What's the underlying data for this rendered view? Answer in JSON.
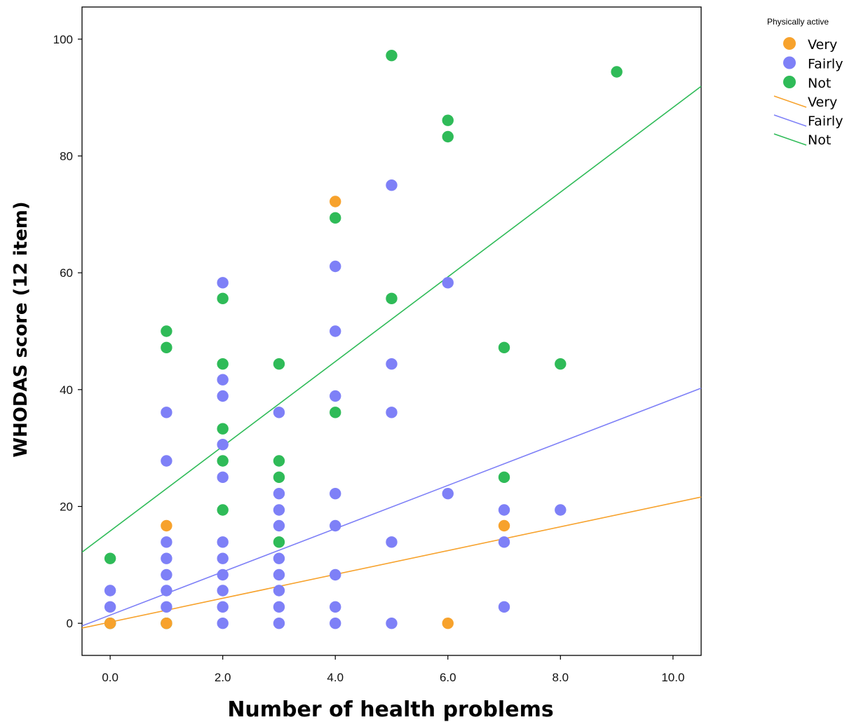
{
  "chart_data": {
    "type": "scatter",
    "xlabel": "Number of health problems",
    "ylabel": "WHODAS score (12 item)",
    "xlim": [
      -0.5,
      10.5
    ],
    "ylim": [
      -5.5,
      105.5
    ],
    "x_ticks": [
      "0.0",
      "2.0",
      "4.0",
      "6.0",
      "8.0",
      "10.0"
    ],
    "y_ticks": [
      "0",
      "20",
      "40",
      "60",
      "80",
      "100"
    ],
    "x_tick_values": [
      0,
      2,
      4,
      6,
      8,
      10
    ],
    "y_tick_values": [
      0,
      20,
      40,
      60,
      80,
      100
    ],
    "grid": false,
    "legend_title": "Physically active",
    "legend_placement": "top-right outside",
    "series": [
      {
        "name": "Very",
        "color": "#f7a22c",
        "points": [
          [
            0,
            0
          ],
          [
            1,
            16.7
          ],
          [
            1,
            0
          ],
          [
            4,
            72.2
          ],
          [
            6,
            0
          ],
          [
            7,
            16.7
          ]
        ],
        "fit": {
          "intercept": 0.2,
          "slope": 2.04
        }
      },
      {
        "name": "Fairly",
        "color": "#7e80f7",
        "points": [
          [
            0,
            5.6
          ],
          [
            0,
            2.8
          ],
          [
            0,
            0
          ],
          [
            1,
            36.1
          ],
          [
            1,
            27.8
          ],
          [
            1,
            13.9
          ],
          [
            1,
            11.1
          ],
          [
            1,
            8.3
          ],
          [
            1,
            5.6
          ],
          [
            1,
            2.8
          ],
          [
            1,
            0
          ],
          [
            2,
            58.3
          ],
          [
            2,
            41.7
          ],
          [
            2,
            38.9
          ],
          [
            2,
            30.6
          ],
          [
            2,
            25.0
          ],
          [
            2,
            13.9
          ],
          [
            2,
            11.1
          ],
          [
            2,
            8.3
          ],
          [
            2,
            5.6
          ],
          [
            2,
            2.8
          ],
          [
            2,
            0
          ],
          [
            3,
            36.1
          ],
          [
            3,
            22.2
          ],
          [
            3,
            19.4
          ],
          [
            3,
            16.7
          ],
          [
            3,
            11.1
          ],
          [
            3,
            8.3
          ],
          [
            3,
            5.6
          ],
          [
            3,
            2.8
          ],
          [
            3,
            0
          ],
          [
            4,
            61.1
          ],
          [
            4,
            50.0
          ],
          [
            4,
            38.9
          ],
          [
            4,
            22.2
          ],
          [
            4,
            16.7
          ],
          [
            4,
            8.3
          ],
          [
            4,
            2.8
          ],
          [
            4,
            0
          ],
          [
            5,
            75.0
          ],
          [
            5,
            44.4
          ],
          [
            5,
            36.1
          ],
          [
            5,
            13.9
          ],
          [
            5,
            0
          ],
          [
            6,
            58.3
          ],
          [
            6,
            22.2
          ],
          [
            7,
            19.4
          ],
          [
            7,
            13.9
          ],
          [
            7,
            2.8
          ],
          [
            8,
            19.4
          ]
        ],
        "fit": {
          "intercept": 1.4,
          "slope": 3.7
        }
      },
      {
        "name": "Not",
        "color": "#2fbb58",
        "points": [
          [
            0,
            11.1
          ],
          [
            0,
            0
          ],
          [
            1,
            50.0
          ],
          [
            1,
            47.2
          ],
          [
            1,
            0
          ],
          [
            2,
            55.6
          ],
          [
            2,
            44.4
          ],
          [
            2,
            33.3
          ],
          [
            2,
            27.8
          ],
          [
            2,
            19.4
          ],
          [
            3,
            44.4
          ],
          [
            3,
            27.8
          ],
          [
            3,
            25.0
          ],
          [
            3,
            13.9
          ],
          [
            4,
            69.4
          ],
          [
            4,
            36.1
          ],
          [
            5,
            97.2
          ],
          [
            5,
            55.6
          ],
          [
            6,
            86.1
          ],
          [
            6,
            83.3
          ],
          [
            7,
            47.2
          ],
          [
            7,
            25.0
          ],
          [
            8,
            44.4
          ],
          [
            9,
            94.4
          ]
        ],
        "fit": {
          "intercept": 15.8,
          "slope": 7.25
        }
      }
    ]
  }
}
